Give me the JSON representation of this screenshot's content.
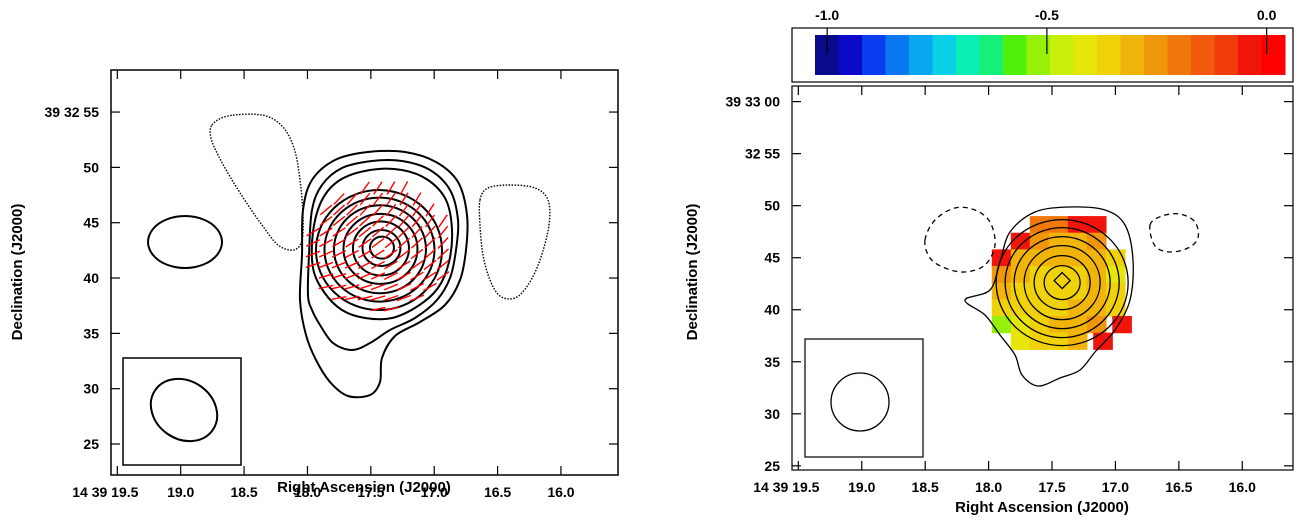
{
  "chart_data": [
    {
      "type": "contour",
      "panel": "left",
      "xlabel": "Right Ascension (J2000)",
      "ylabel": "Declination (J2000)",
      "x_ticks": [
        {
          "v": 19.5,
          "label": "14 39 19.5"
        },
        {
          "v": 19.0,
          "label": "19.0"
        },
        {
          "v": 18.5,
          "label": "18.5"
        },
        {
          "v": 18.0,
          "label": "18.0"
        },
        {
          "v": 17.5,
          "label": "17.5"
        },
        {
          "v": 17.0,
          "label": "17.0"
        },
        {
          "v": 16.5,
          "label": "16.5"
        },
        {
          "v": 16.0,
          "label": "16.0"
        }
      ],
      "y_ticks": [
        {
          "v": 55,
          "label": "39 32 55"
        },
        {
          "v": 50,
          "label": "50"
        },
        {
          "v": 45,
          "label": "45"
        },
        {
          "v": 40,
          "label": "40"
        },
        {
          "v": 35,
          "label": "35"
        },
        {
          "v": 30,
          "label": "30"
        },
        {
          "v": 25,
          "label": "25"
        }
      ],
      "xlim": [
        19.55,
        15.55
      ],
      "ylim": [
        22.2,
        58.8
      ],
      "source_center": {
        "ra": 17.42,
        "dec": 42.8
      },
      "contour_count_positive": 9,
      "negative_contours": 3,
      "beam_box": true,
      "vectors_color": "#ff0000",
      "contour_color": "#000000"
    },
    {
      "type": "heatmap",
      "panel": "right",
      "xlabel": "Right Ascension (J2000)",
      "ylabel": "Declination (J2000)",
      "x_ticks": [
        {
          "v": 19.5,
          "label": "14 39 19.5"
        },
        {
          "v": 19.0,
          "label": "19.0"
        },
        {
          "v": 18.5,
          "label": "18.5"
        },
        {
          "v": 18.0,
          "label": "18.0"
        },
        {
          "v": 17.5,
          "label": "17.5"
        },
        {
          "v": 17.0,
          "label": "17.0"
        },
        {
          "v": 16.5,
          "label": "16.5"
        },
        {
          "v": 16.0,
          "label": "16.0"
        }
      ],
      "y_ticks": [
        {
          "v": 60,
          "label": "39 33 00"
        },
        {
          "v": 55,
          "label": "32 55"
        },
        {
          "v": 50,
          "label": "50"
        },
        {
          "v": 45,
          "label": "45"
        },
        {
          "v": 40,
          "label": "40"
        },
        {
          "v": 35,
          "label": "35"
        },
        {
          "v": 30,
          "label": "30"
        },
        {
          "v": 25,
          "label": "25"
        }
      ],
      "xlim": [
        19.55,
        15.6
      ],
      "ylim": [
        24.6,
        61.5
      ],
      "colorbar": {
        "ticks": [
          {
            "v": -1.0,
            "label": "-1.0"
          },
          {
            "v": -0.5,
            "label": "-0.5"
          },
          {
            "v": 0.0,
            "label": "0.0"
          }
        ],
        "range": [
          -1.08,
          0.06
        ],
        "colors": [
          "#0a0a8c",
          "#0a0ac8",
          "#0a3cf0",
          "#0a78f0",
          "#0aa8f0",
          "#0ad2e6",
          "#0af0b4",
          "#14f078",
          "#50f00a",
          "#96f00a",
          "#c8f00a",
          "#e6e60a",
          "#f0d20a",
          "#f0b40a",
          "#f0960a",
          "#f0780a",
          "#f05a0a",
          "#f03c0a",
          "#f0140a",
          "#ff0000"
        ]
      },
      "pixels": [
        {
          "ra": 17.6,
          "dec": 48.2,
          "v": -0.2
        },
        {
          "ra": 17.45,
          "dec": 48.2,
          "v": -0.2
        },
        {
          "ra": 17.3,
          "dec": 48.2,
          "v": 0.0
        },
        {
          "ra": 17.15,
          "dec": 48.2,
          "v": 0.0
        },
        {
          "ra": 17.75,
          "dec": 46.6,
          "v": 0.0
        },
        {
          "ra": 17.6,
          "dec": 46.6,
          "v": -0.25
        },
        {
          "ra": 17.45,
          "dec": 46.6,
          "v": -0.3
        },
        {
          "ra": 17.3,
          "dec": 46.6,
          "v": -0.3
        },
        {
          "ra": 17.15,
          "dec": 46.6,
          "v": -0.25
        },
        {
          "ra": 17.9,
          "dec": 45.0,
          "v": 0.0
        },
        {
          "ra": 17.75,
          "dec": 45.0,
          "v": -0.3
        },
        {
          "ra": 17.6,
          "dec": 45.0,
          "v": -0.33
        },
        {
          "ra": 17.45,
          "dec": 45.0,
          "v": -0.33
        },
        {
          "ra": 17.3,
          "dec": 45.0,
          "v": -0.33
        },
        {
          "ra": 17.15,
          "dec": 45.0,
          "v": -0.3
        },
        {
          "ra": 17.0,
          "dec": 45.0,
          "v": -0.35
        },
        {
          "ra": 17.9,
          "dec": 43.4,
          "v": -0.25
        },
        {
          "ra": 17.75,
          "dec": 43.4,
          "v": -0.33
        },
        {
          "ra": 17.6,
          "dec": 43.4,
          "v": -0.35
        },
        {
          "ra": 17.45,
          "dec": 43.4,
          "v": -0.35
        },
        {
          "ra": 17.3,
          "dec": 43.4,
          "v": -0.35
        },
        {
          "ra": 17.15,
          "dec": 43.4,
          "v": -0.33
        },
        {
          "ra": 17.0,
          "dec": 43.4,
          "v": -0.4
        },
        {
          "ra": 17.9,
          "dec": 41.8,
          "v": -0.3
        },
        {
          "ra": 17.75,
          "dec": 41.8,
          "v": -0.35
        },
        {
          "ra": 17.6,
          "dec": 41.8,
          "v": -0.36
        },
        {
          "ra": 17.45,
          "dec": 41.8,
          "v": -0.36
        },
        {
          "ra": 17.3,
          "dec": 41.8,
          "v": -0.35
        },
        {
          "ra": 17.15,
          "dec": 41.8,
          "v": -0.33
        },
        {
          "ra": 17.0,
          "dec": 41.8,
          "v": -0.38
        },
        {
          "ra": 17.9,
          "dec": 40.2,
          "v": -0.35
        },
        {
          "ra": 17.75,
          "dec": 40.2,
          "v": -0.35
        },
        {
          "ra": 17.6,
          "dec": 40.2,
          "v": -0.36
        },
        {
          "ra": 17.45,
          "dec": 40.2,
          "v": -0.35
        },
        {
          "ra": 17.3,
          "dec": 40.2,
          "v": -0.33
        },
        {
          "ra": 17.15,
          "dec": 40.2,
          "v": -0.3
        },
        {
          "ra": 17.0,
          "dec": 40.2,
          "v": -0.35
        },
        {
          "ra": 17.9,
          "dec": 38.6,
          "v": -0.55
        },
        {
          "ra": 17.75,
          "dec": 38.6,
          "v": -0.4
        },
        {
          "ra": 17.6,
          "dec": 38.6,
          "v": -0.35
        },
        {
          "ra": 17.45,
          "dec": 38.6,
          "v": -0.33
        },
        {
          "ra": 17.3,
          "dec": 38.6,
          "v": -0.3
        },
        {
          "ra": 17.15,
          "dec": 38.6,
          "v": -0.28
        },
        {
          "ra": 16.95,
          "dec": 38.6,
          "v": 0.0
        },
        {
          "ra": 17.75,
          "dec": 37.0,
          "v": -0.4
        },
        {
          "ra": 17.6,
          "dec": 37.0,
          "v": -0.35
        },
        {
          "ra": 17.45,
          "dec": 37.0,
          "v": -0.35
        },
        {
          "ra": 17.3,
          "dec": 37.0,
          "v": -0.3
        },
        {
          "ra": 17.1,
          "dec": 37.0,
          "v": 0.0
        }
      ],
      "source_center": {
        "ra": 17.42,
        "dec": 42.8
      },
      "beam_box": true
    }
  ]
}
